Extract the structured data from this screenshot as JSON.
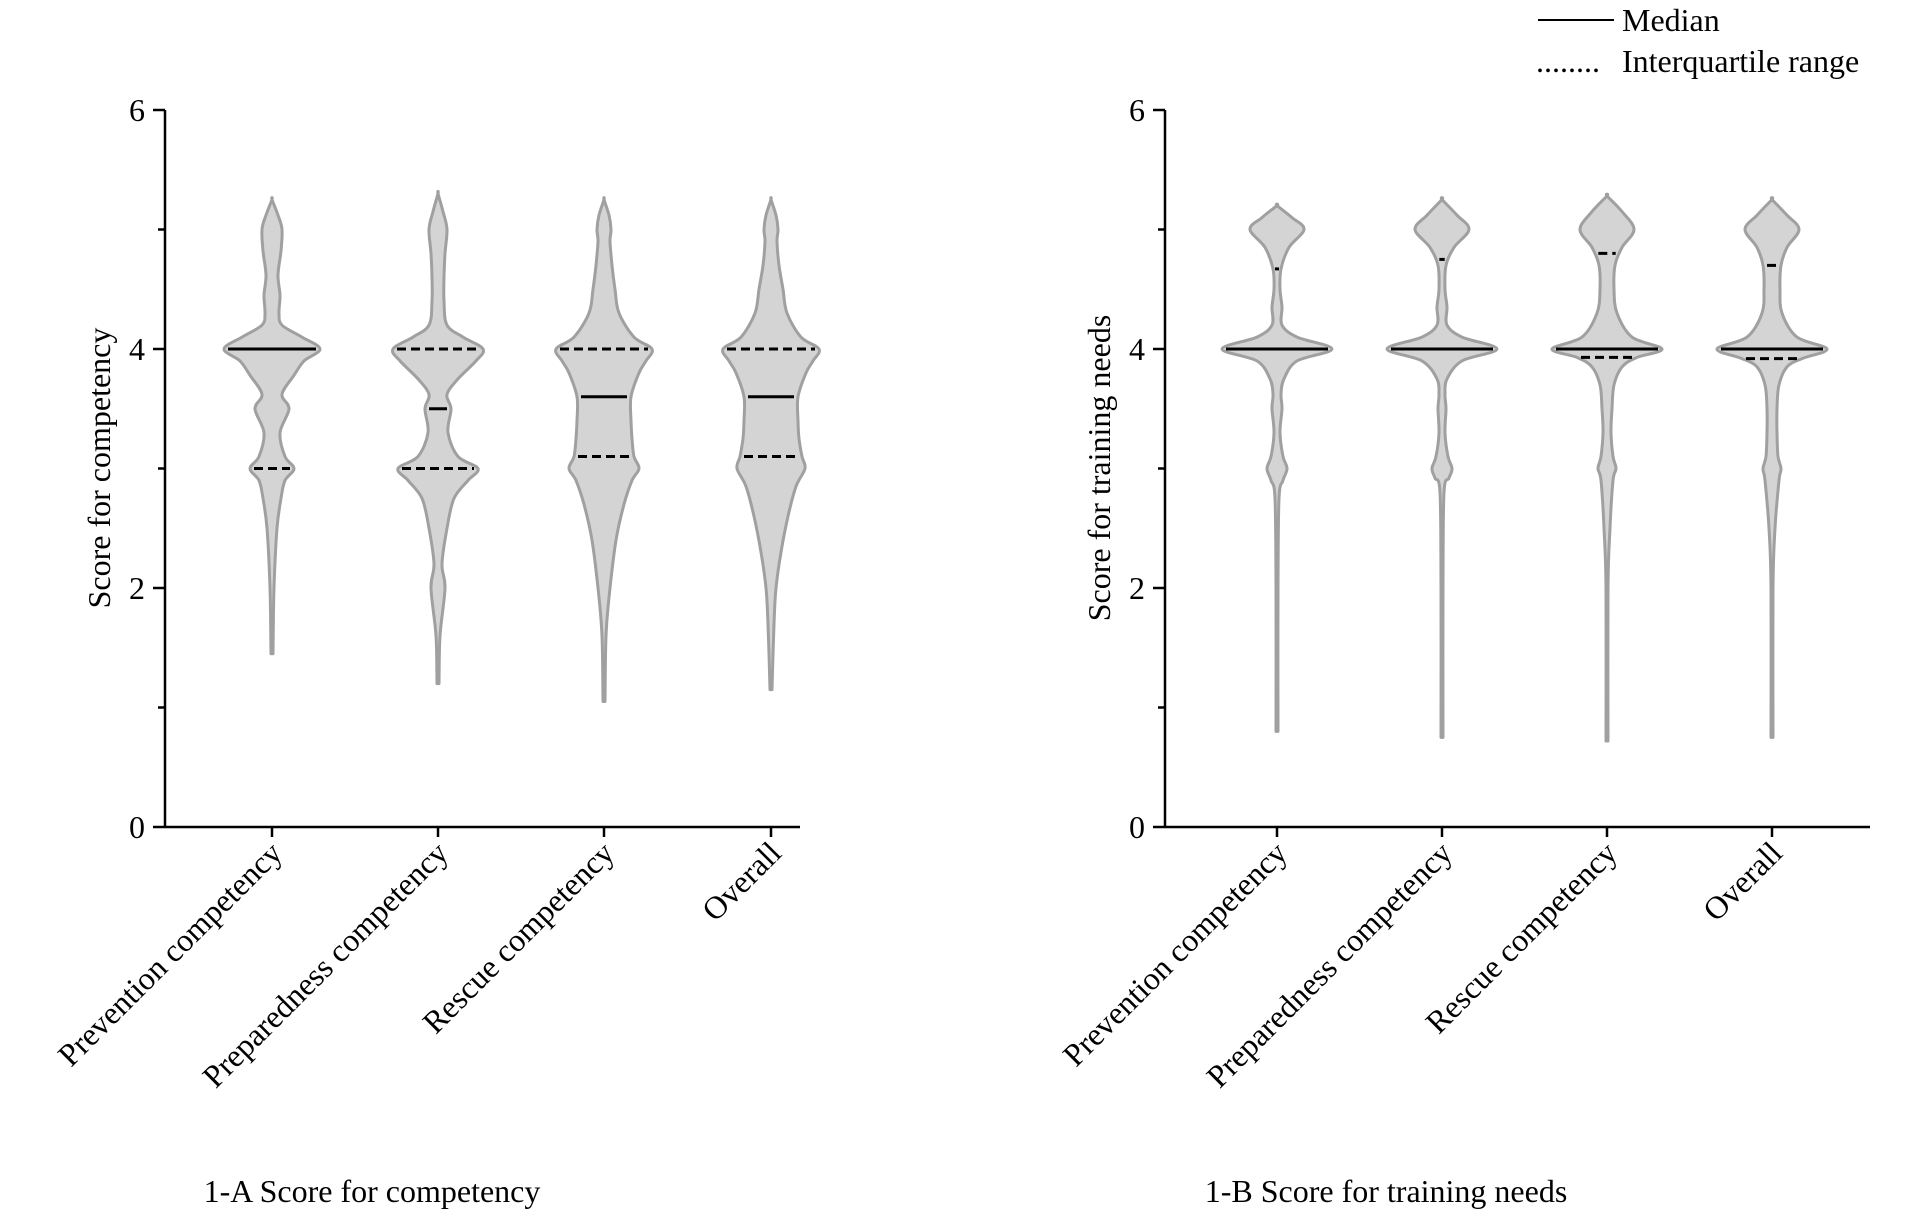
{
  "legend": {
    "median_label": "Median",
    "iqr_label": "Interquartile range",
    "iqr_marker": "........"
  },
  "chart_data": [
    {
      "type": "violin",
      "caption": "1-A Score for competency",
      "ylabel": "Score for competency",
      "ylim": [
        0,
        6
      ],
      "yticks": [
        0,
        2,
        4,
        6
      ],
      "yminor": [
        1,
        3,
        5
      ],
      "categories": [
        "Prevention competency",
        "Preparedness competency",
        "Rescue competency",
        "Overall"
      ],
      "violins": [
        {
          "median": 4.0,
          "q1": 3.0,
          "q3": 4.0,
          "min": 1.45,
          "max": 5.25,
          "profile": [
            [
              1.45,
              0.01
            ],
            [
              2.0,
              0.02
            ],
            [
              2.5,
              0.05
            ],
            [
              2.75,
              0.09
            ],
            [
              2.9,
              0.13
            ],
            [
              3.0,
              0.22
            ],
            [
              3.1,
              0.13
            ],
            [
              3.3,
              0.08
            ],
            [
              3.5,
              0.17
            ],
            [
              3.62,
              0.1
            ],
            [
              3.78,
              0.22
            ],
            [
              3.9,
              0.32
            ],
            [
              4.0,
              0.48
            ],
            [
              4.1,
              0.3
            ],
            [
              4.2,
              0.1
            ],
            [
              4.3,
              0.07
            ],
            [
              4.45,
              0.08
            ],
            [
              4.62,
              0.06
            ],
            [
              4.82,
              0.09
            ],
            [
              5.0,
              0.1
            ],
            [
              5.12,
              0.06
            ],
            [
              5.25,
              0.0
            ]
          ]
        },
        {
          "median": 3.5,
          "q1": 3.0,
          "q3": 4.0,
          "min": 1.2,
          "max": 5.3,
          "profile": [
            [
              1.2,
              0.01
            ],
            [
              1.6,
              0.02
            ],
            [
              2.0,
              0.07
            ],
            [
              2.2,
              0.04
            ],
            [
              2.5,
              0.09
            ],
            [
              2.75,
              0.16
            ],
            [
              2.9,
              0.3
            ],
            [
              3.0,
              0.4
            ],
            [
              3.1,
              0.2
            ],
            [
              3.3,
              0.1
            ],
            [
              3.5,
              0.13
            ],
            [
              3.62,
              0.09
            ],
            [
              3.75,
              0.2
            ],
            [
              3.9,
              0.38
            ],
            [
              4.0,
              0.45
            ],
            [
              4.1,
              0.25
            ],
            [
              4.2,
              0.09
            ],
            [
              4.4,
              0.06
            ],
            [
              4.6,
              0.06
            ],
            [
              4.8,
              0.07
            ],
            [
              5.0,
              0.09
            ],
            [
              5.15,
              0.05
            ],
            [
              5.3,
              0.0
            ]
          ]
        },
        {
          "median": 3.6,
          "q1": 3.1,
          "q3": 4.0,
          "min": 1.05,
          "max": 5.25,
          "profile": [
            [
              1.05,
              0.01
            ],
            [
              1.6,
              0.02
            ],
            [
              2.0,
              0.06
            ],
            [
              2.4,
              0.12
            ],
            [
              2.7,
              0.2
            ],
            [
              2.9,
              0.28
            ],
            [
              3.0,
              0.35
            ],
            [
              3.1,
              0.3
            ],
            [
              3.25,
              0.28
            ],
            [
              3.4,
              0.27
            ],
            [
              3.6,
              0.27
            ],
            [
              3.8,
              0.35
            ],
            [
              3.9,
              0.42
            ],
            [
              4.0,
              0.48
            ],
            [
              4.1,
              0.3
            ],
            [
              4.3,
              0.15
            ],
            [
              4.5,
              0.11
            ],
            [
              4.7,
              0.08
            ],
            [
              4.9,
              0.06
            ],
            [
              5.0,
              0.07
            ],
            [
              5.12,
              0.05
            ],
            [
              5.25,
              0.0
            ]
          ]
        },
        {
          "median": 3.6,
          "q1": 3.1,
          "q3": 4.0,
          "min": 1.15,
          "max": 5.25,
          "profile": [
            [
              1.15,
              0.01
            ],
            [
              1.7,
              0.03
            ],
            [
              2.0,
              0.05
            ],
            [
              2.3,
              0.1
            ],
            [
              2.6,
              0.17
            ],
            [
              2.85,
              0.25
            ],
            [
              3.0,
              0.34
            ],
            [
              3.1,
              0.31
            ],
            [
              3.25,
              0.28
            ],
            [
              3.4,
              0.27
            ],
            [
              3.6,
              0.27
            ],
            [
              3.8,
              0.35
            ],
            [
              3.9,
              0.42
            ],
            [
              4.0,
              0.48
            ],
            [
              4.1,
              0.3
            ],
            [
              4.3,
              0.16
            ],
            [
              4.5,
              0.12
            ],
            [
              4.7,
              0.08
            ],
            [
              4.9,
              0.06
            ],
            [
              5.0,
              0.07
            ],
            [
              5.12,
              0.05
            ],
            [
              5.25,
              0.0
            ]
          ]
        }
      ]
    },
    {
      "type": "violin",
      "caption": "1-B Score for training needs",
      "ylabel": "Score for training needs",
      "ylim": [
        0,
        6
      ],
      "yticks": [
        0,
        2,
        4,
        6
      ],
      "yminor": [
        1,
        3,
        5
      ],
      "categories": [
        "Prevention competency",
        "Preparedness competency",
        "Rescue competency",
        "Overall"
      ],
      "violins": [
        {
          "median": 4.0,
          "q1": 4.0,
          "q3": 4.67,
          "min": 0.8,
          "max": 5.2,
          "profile": [
            [
              0.8,
              0.01
            ],
            [
              2.0,
              0.01
            ],
            [
              2.75,
              0.02
            ],
            [
              2.9,
              0.06
            ],
            [
              3.0,
              0.1
            ],
            [
              3.1,
              0.06
            ],
            [
              3.3,
              0.03
            ],
            [
              3.5,
              0.05
            ],
            [
              3.62,
              0.04
            ],
            [
              3.75,
              0.07
            ],
            [
              3.9,
              0.2
            ],
            [
              4.0,
              0.55
            ],
            [
              4.1,
              0.2
            ],
            [
              4.2,
              0.05
            ],
            [
              4.35,
              0.05
            ],
            [
              4.5,
              0.03
            ],
            [
              4.67,
              0.04
            ],
            [
              4.85,
              0.12
            ],
            [
              5.0,
              0.27
            ],
            [
              5.1,
              0.15
            ],
            [
              5.2,
              0.0
            ]
          ]
        },
        {
          "median": 4.0,
          "q1": 4.0,
          "q3": 4.75,
          "min": 0.75,
          "max": 5.25,
          "profile": [
            [
              0.75,
              0.01
            ],
            [
              2.0,
              0.01
            ],
            [
              2.8,
              0.02
            ],
            [
              2.92,
              0.07
            ],
            [
              3.0,
              0.1
            ],
            [
              3.1,
              0.06
            ],
            [
              3.3,
              0.03
            ],
            [
              3.5,
              0.04
            ],
            [
              3.62,
              0.03
            ],
            [
              3.75,
              0.05
            ],
            [
              3.9,
              0.2
            ],
            [
              4.0,
              0.55
            ],
            [
              4.1,
              0.2
            ],
            [
              4.2,
              0.05
            ],
            [
              4.35,
              0.05
            ],
            [
              4.5,
              0.03
            ],
            [
              4.7,
              0.04
            ],
            [
              4.85,
              0.12
            ],
            [
              5.0,
              0.27
            ],
            [
              5.12,
              0.15
            ],
            [
              5.25,
              0.0
            ]
          ]
        },
        {
          "median": 4.0,
          "q1": 3.93,
          "q3": 4.8,
          "min": 0.72,
          "max": 5.28,
          "profile": [
            [
              0.72,
              0.01
            ],
            [
              2.0,
              0.01
            ],
            [
              2.5,
              0.03
            ],
            [
              2.9,
              0.06
            ],
            [
              3.0,
              0.09
            ],
            [
              3.1,
              0.06
            ],
            [
              3.3,
              0.04
            ],
            [
              3.5,
              0.05
            ],
            [
              3.7,
              0.07
            ],
            [
              3.85,
              0.15
            ],
            [
              3.93,
              0.3
            ],
            [
              4.0,
              0.55
            ],
            [
              4.1,
              0.25
            ],
            [
              4.3,
              0.1
            ],
            [
              4.5,
              0.07
            ],
            [
              4.7,
              0.08
            ],
            [
              4.85,
              0.15
            ],
            [
              5.0,
              0.27
            ],
            [
              5.15,
              0.15
            ],
            [
              5.28,
              0.0
            ]
          ]
        },
        {
          "median": 4.0,
          "q1": 3.92,
          "q3": 4.7,
          "min": 0.75,
          "max": 5.25,
          "profile": [
            [
              0.75,
              0.01
            ],
            [
              2.0,
              0.01
            ],
            [
              2.5,
              0.03
            ],
            [
              2.9,
              0.07
            ],
            [
              3.0,
              0.09
            ],
            [
              3.1,
              0.06
            ],
            [
              3.3,
              0.05
            ],
            [
              3.5,
              0.05
            ],
            [
              3.7,
              0.07
            ],
            [
              3.85,
              0.15
            ],
            [
              3.92,
              0.3
            ],
            [
              4.0,
              0.55
            ],
            [
              4.1,
              0.25
            ],
            [
              4.3,
              0.1
            ],
            [
              4.5,
              0.08
            ],
            [
              4.7,
              0.09
            ],
            [
              4.85,
              0.15
            ],
            [
              5.0,
              0.27
            ],
            [
              5.12,
              0.15
            ],
            [
              5.25,
              0.0
            ]
          ]
        }
      ]
    }
  ]
}
